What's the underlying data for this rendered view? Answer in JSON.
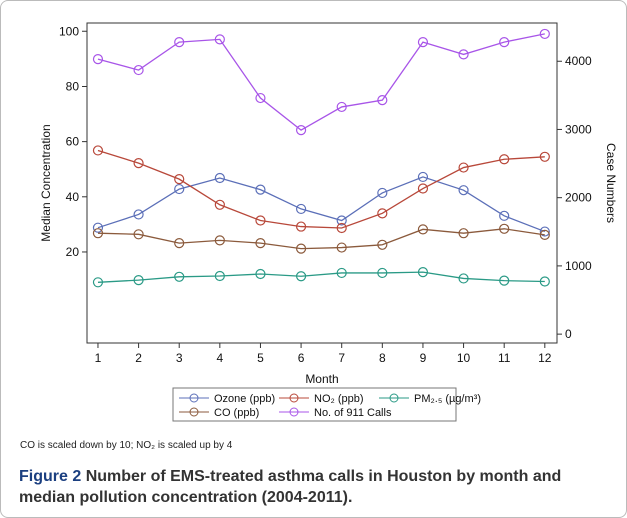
{
  "chart_data": {
    "type": "line",
    "x": [
      1,
      2,
      3,
      4,
      5,
      6,
      7,
      8,
      9,
      10,
      11,
      12
    ],
    "xlim": [
      0.73,
      12.3
    ],
    "xticks": [
      1,
      2,
      3,
      4,
      5,
      6,
      7,
      8,
      9,
      10,
      11,
      12
    ],
    "ylim": [
      -13,
      103
    ],
    "yticks": [
      20,
      40,
      60,
      80,
      100
    ],
    "y2lim": [
      -130,
      4560
    ],
    "y2ticks": [
      0,
      1000,
      2000,
      3000,
      4000
    ],
    "xlabel": "Month",
    "ylabel": "Median Concentration",
    "y2label": "Case Numbers",
    "series": [
      {
        "name": "Ozone (ppb)",
        "color": "#5b6fb8",
        "values": [
          28.8,
          33.6,
          42.8,
          46.8,
          42.6,
          35.6,
          31.4,
          41.4,
          47.2,
          42.4,
          33.1,
          27.4
        ]
      },
      {
        "name": "NO₂ (ppb)",
        "color": "#b8483a",
        "values": [
          56.8,
          52.2,
          46.4,
          37.1,
          31.4,
          29.2,
          28.7,
          34.0,
          43.0,
          50.6,
          53.6,
          54.5
        ]
      },
      {
        "name": "PM₂.₅ (µg/m³)",
        "color": "#2a9a86",
        "values": [
          9.0,
          9.8,
          11.0,
          11.3,
          12.0,
          11.2,
          12.4,
          12.4,
          12.7,
          10.4,
          9.6,
          9.3
        ]
      },
      {
        "name": "CO (ppb)",
        "color": "#8b5a3c",
        "values": [
          26.8,
          26.4,
          23.2,
          24.2,
          23.2,
          21.2,
          21.6,
          22.6,
          28.2,
          26.8,
          28.4,
          26.2
        ]
      },
      {
        "name": "No. of 911 Calls",
        "color": "#a855e8",
        "axis": "y2",
        "values": [
          4030,
          3870,
          4280,
          4320,
          3460,
          2990,
          3330,
          3430,
          4280,
          4100,
          4280,
          4400
        ]
      }
    ]
  },
  "note": "CO is scaled down by 10; NO₂ is scaled up by 4",
  "caption_label": "Figure 2",
  "caption": "Number of EMS-treated asthma calls in Houston by month and median pollution concentration (2004-2011)."
}
